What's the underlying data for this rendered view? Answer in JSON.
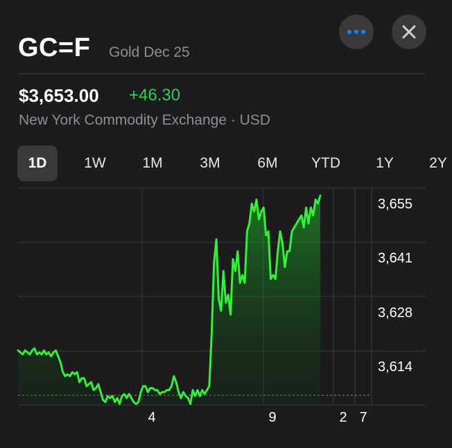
{
  "header": {
    "ticker": "GC=F",
    "subtitle": "Gold Dec 25",
    "more_icon": "ellipsis-icon",
    "close_icon": "close-icon"
  },
  "quote": {
    "price": "$3,653.00",
    "change": "+46.30",
    "exchange": "New York Commodity Exchange · USD"
  },
  "tabs": [
    {
      "label": "1D",
      "active": true
    },
    {
      "label": "1W",
      "active": false
    },
    {
      "label": "1M",
      "active": false
    },
    {
      "label": "3M",
      "active": false
    },
    {
      "label": "6M",
      "active": false
    },
    {
      "label": "YTD",
      "active": false
    },
    {
      "label": "1Y",
      "active": false
    },
    {
      "label": "2Y",
      "active": false
    }
  ],
  "colors": {
    "background": "#1c1c1e",
    "positive": "#30d158",
    "line": "#35f03a",
    "accent": "#0a84ff",
    "muted": "#8e8e93"
  },
  "chart_data": {
    "type": "area",
    "y_tick_labels": [
      "3,655",
      "3,641",
      "3,628",
      "3,614"
    ],
    "x_tick_labels": [
      "4",
      "9",
      "2",
      "7"
    ],
    "ylim": [
      3600,
      3658
    ],
    "previous_close": 3606.7,
    "series": [
      {
        "values": [
          3618,
          3617.5,
          3617,
          3618,
          3617.5,
          3617,
          3618,
          3618.5,
          3617,
          3617.5,
          3617,
          3618,
          3617,
          3617.5,
          3616.5,
          3617.5,
          3618,
          3616.5,
          3615,
          3612.5,
          3611.5,
          3612,
          3611.5,
          3612.5,
          3612,
          3612.5,
          3610,
          3611,
          3611,
          3609,
          3609.5,
          3610,
          3608,
          3608.5,
          3609.5,
          3607.5,
          3605.5,
          3605,
          3606.5,
          3606,
          3606.5,
          3605,
          3606,
          3604.5,
          3606.5,
          3607,
          3606,
          3607,
          3606,
          3605,
          3604.5,
          3605,
          3607.5,
          3609,
          3609,
          3607.5,
          3608.5,
          3608.5,
          3608,
          3608,
          3607,
          3607.5,
          3607.5,
          3608,
          3608,
          3609,
          3611.5,
          3610,
          3607.5,
          3606,
          3607.5,
          3606.5,
          3606,
          3604.5,
          3608,
          3606.5,
          3608,
          3606.5,
          3608,
          3607,
          3608,
          3609,
          3622,
          3640,
          3646,
          3631,
          3628,
          3638,
          3630,
          3632,
          3627,
          3641,
          3638,
          3643,
          3635,
          3637,
          3635,
          3648,
          3650,
          3655,
          3653,
          3656,
          3651,
          3653,
          3654,
          3647,
          3648,
          3636,
          3637,
          3636,
          3643,
          3648,
          3645,
          3639,
          3643,
          3643,
          3648,
          3649,
          3650,
          3651,
          3652,
          3649,
          3654,
          3650,
          3654,
          3652,
          3656,
          3655,
          3657
        ]
      }
    ]
  }
}
